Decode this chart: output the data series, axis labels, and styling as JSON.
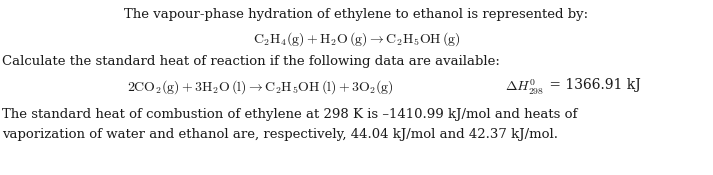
{
  "bg_color": "#ffffff",
  "line1": "The vapour-phase hydration of ethylene to ethanol is represented by:",
  "eq1": "$\\mathrm{C_2H_4(g) + H_2O\\,(g) \\rightarrow C_2H_5OH\\,(g)}$",
  "line3": "Calculate the standard heat of reaction if the following data are available:",
  "eq2": "$\\mathrm{2CO_2(g) + 3H_2O\\,(l) \\rightarrow C_2H_5OH\\,(l) + 3O_2(g)}$",
  "dH_label": "$\\Delta H^{0}_{298}$",
  "dH_value": " = 1366.91 kJ",
  "line5": "The standard heat of combustion of ethylene at 298 K is –1410.99 kJ/mol and heats of",
  "line6": "vaporization of water and ethanol are, respectively, 44.04 kJ/mol and 42.37 kJ/mol.",
  "font_size": 9.5,
  "text_color": "#1a1a1a"
}
